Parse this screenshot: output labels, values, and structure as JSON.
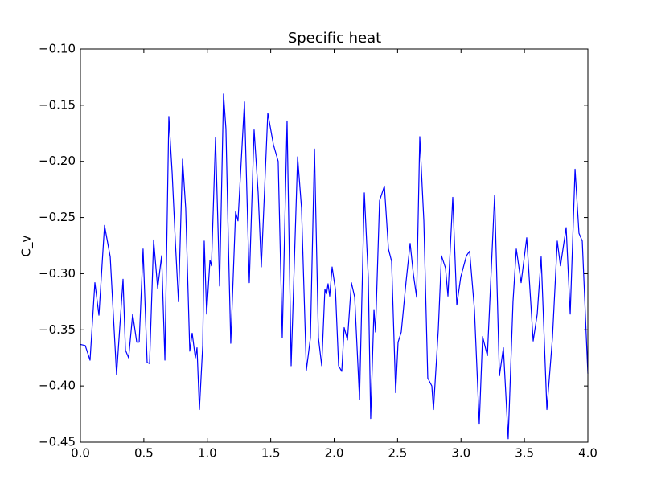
{
  "chart_data": {
    "type": "line",
    "title": "Specific heat",
    "ylabel": "C_v",
    "x": [
      0,
      0.038,
      0.076,
      0.114,
      0.146,
      0.19,
      0.235,
      0.285,
      0.336,
      0.355,
      0.38,
      0.412,
      0.444,
      0.463,
      0.494,
      0.526,
      0.545,
      0.577,
      0.609,
      0.64,
      0.666,
      0.697,
      0.723,
      0.748,
      0.773,
      0.805,
      0.83,
      0.862,
      0.881,
      0.906,
      0.919,
      0.938,
      0.964,
      0.976,
      0.995,
      1.021,
      1.033,
      1.065,
      1.097,
      1.128,
      1.147,
      1.166,
      1.185,
      1.223,
      1.242,
      1.293,
      1.331,
      1.369,
      1.401,
      1.426,
      1.477,
      1.521,
      1.559,
      1.591,
      1.629,
      1.661,
      1.712,
      1.743,
      1.781,
      1.813,
      1.845,
      1.876,
      1.902,
      1.927,
      1.94,
      1.952,
      1.965,
      1.984,
      2.01,
      2.035,
      2.06,
      2.079,
      2.105,
      2.136,
      2.162,
      2.2,
      2.238,
      2.269,
      2.288,
      2.314,
      2.326,
      2.358,
      2.396,
      2.428,
      2.453,
      2.485,
      2.504,
      2.529,
      2.567,
      2.599,
      2.624,
      2.65,
      2.675,
      2.707,
      2.738,
      2.77,
      2.783,
      2.821,
      2.846,
      2.878,
      2.897,
      2.935,
      2.967,
      2.998,
      3.043,
      3.068,
      3.106,
      3.144,
      3.17,
      3.208,
      3.265,
      3.303,
      3.334,
      3.372,
      3.41,
      3.436,
      3.474,
      3.518,
      3.569,
      3.601,
      3.632,
      3.677,
      3.721,
      3.759,
      3.784,
      3.829,
      3.861,
      3.899,
      3.93,
      3.956,
      4.0
    ],
    "series": [
      {
        "color": "#0000ff",
        "values": [
          -0.363,
          -0.364,
          -0.377,
          -0.308,
          -0.337,
          -0.257,
          -0.285,
          -0.39,
          -0.305,
          -0.368,
          -0.375,
          -0.336,
          -0.361,
          -0.361,
          -0.278,
          -0.379,
          -0.38,
          -0.27,
          -0.313,
          -0.284,
          -0.377,
          -0.16,
          -0.21,
          -0.271,
          -0.325,
          -0.198,
          -0.242,
          -0.369,
          -0.353,
          -0.375,
          -0.366,
          -0.421,
          -0.364,
          -0.271,
          -0.336,
          -0.288,
          -0.293,
          -0.179,
          -0.311,
          -0.14,
          -0.171,
          -0.271,
          -0.362,
          -0.245,
          -0.253,
          -0.147,
          -0.308,
          -0.172,
          -0.228,
          -0.294,
          -0.157,
          -0.185,
          -0.2,
          -0.357,
          -0.164,
          -0.382,
          -0.196,
          -0.242,
          -0.386,
          -0.357,
          -0.189,
          -0.357,
          -0.382,
          -0.314,
          -0.318,
          -0.309,
          -0.32,
          -0.294,
          -0.314,
          -0.382,
          -0.387,
          -0.348,
          -0.359,
          -0.308,
          -0.321,
          -0.412,
          -0.228,
          -0.303,
          -0.429,
          -0.332,
          -0.352,
          -0.235,
          -0.222,
          -0.278,
          -0.289,
          -0.406,
          -0.361,
          -0.352,
          -0.307,
          -0.273,
          -0.3,
          -0.321,
          -0.178,
          -0.253,
          -0.393,
          -0.4,
          -0.421,
          -0.35,
          -0.284,
          -0.295,
          -0.32,
          -0.232,
          -0.328,
          -0.303,
          -0.284,
          -0.28,
          -0.332,
          -0.434,
          -0.356,
          -0.373,
          -0.23,
          -0.391,
          -0.366,
          -0.447,
          -0.325,
          -0.278,
          -0.308,
          -0.268,
          -0.36,
          -0.336,
          -0.285,
          -0.421,
          -0.357,
          -0.271,
          -0.293,
          -0.259,
          -0.336,
          -0.207,
          -0.264,
          -0.271,
          -0.389
        ]
      }
    ],
    "xlim": [
      0,
      4
    ],
    "ylim": [
      -0.45,
      -0.1
    ],
    "xticks": [
      {
        "value": 0,
        "label": "0.0"
      },
      0.5,
      {
        "value": 1,
        "label": "1.0"
      },
      1.5,
      {
        "value": 2,
        "label": "2.0"
      },
      2.5,
      {
        "value": 3,
        "label": "3.0"
      },
      3.5,
      {
        "value": 4,
        "label": "4.0"
      }
    ],
    "yticks": [
      {
        "value": -0.45,
        "label": "−0.45"
      },
      {
        "value": -0.4,
        "label": "−0.40"
      },
      {
        "value": -0.35,
        "label": "−0.35"
      },
      {
        "value": -0.3,
        "label": "−0.30"
      },
      {
        "value": -0.25,
        "label": "−0.25"
      },
      {
        "value": -0.2,
        "label": "−0.20"
      },
      {
        "value": -0.15,
        "label": "−0.15"
      },
      {
        "value": -0.1,
        "label": "−0.10"
      }
    ],
    "grid": false
  }
}
